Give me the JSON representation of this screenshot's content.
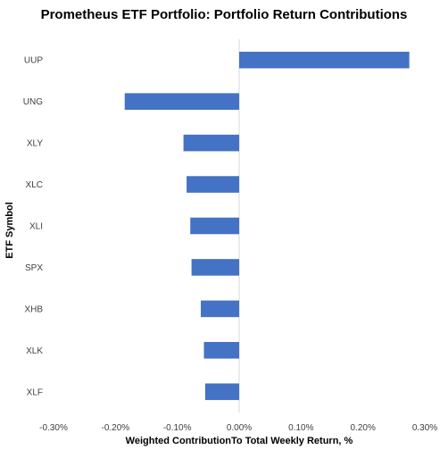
{
  "chart_data": {
    "type": "bar",
    "orientation": "horizontal",
    "title": "Prometheus ETF Portfolio: Portfolio Return Contributions",
    "xlabel": "Weighted ContributionTo Total Weekly Return, %",
    "ylabel": "ETF Symbol",
    "categories": [
      "UUP",
      "UNG",
      "XLY",
      "XLC",
      "XLI",
      "SPX",
      "XHB",
      "XLK",
      "XLF"
    ],
    "values": [
      0.275,
      -0.185,
      -0.09,
      -0.085,
      -0.079,
      -0.077,
      -0.062,
      -0.057,
      -0.055
    ],
    "xlim": [
      -0.3,
      0.3
    ],
    "xticks": [
      -0.3,
      -0.2,
      -0.1,
      0.0,
      0.1,
      0.2,
      0.3
    ],
    "xtick_labels": [
      "-0.30%",
      "-0.20%",
      "-0.10%",
      "0.00%",
      "0.10%",
      "0.20%",
      "0.30%"
    ],
    "bar_color": "#4472C4",
    "grid": false,
    "legend": "none"
  }
}
